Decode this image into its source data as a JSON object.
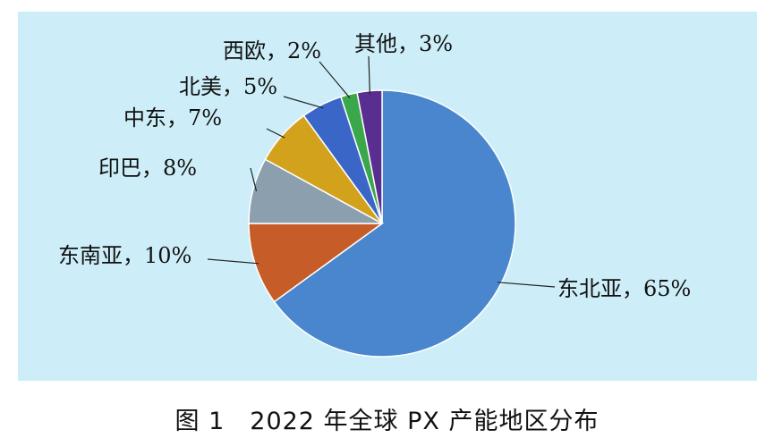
{
  "chart_data": {
    "type": "pie",
    "title": "",
    "slices": [
      {
        "label": "东北亚，65%",
        "value": 65,
        "color": "#4a86cd"
      },
      {
        "label": "东南亚，10%",
        "value": 10,
        "color": "#c65d28"
      },
      {
        "label": "印巴，8%",
        "value": 8,
        "color": "#8b9fae"
      },
      {
        "label": "中东，7%",
        "value": 7,
        "color": "#d2a21d"
      },
      {
        "label": "北美，5%",
        "value": 5,
        "color": "#3a66c8"
      },
      {
        "label": "西欧，2%",
        "value": 2,
        "color": "#3aa84a"
      },
      {
        "label": "其他，3%",
        "value": 3,
        "color": "#5a2d91"
      }
    ],
    "background": "#cdeef8"
  },
  "caption": "图 1　2022 年全球 PX 产能地区分布"
}
